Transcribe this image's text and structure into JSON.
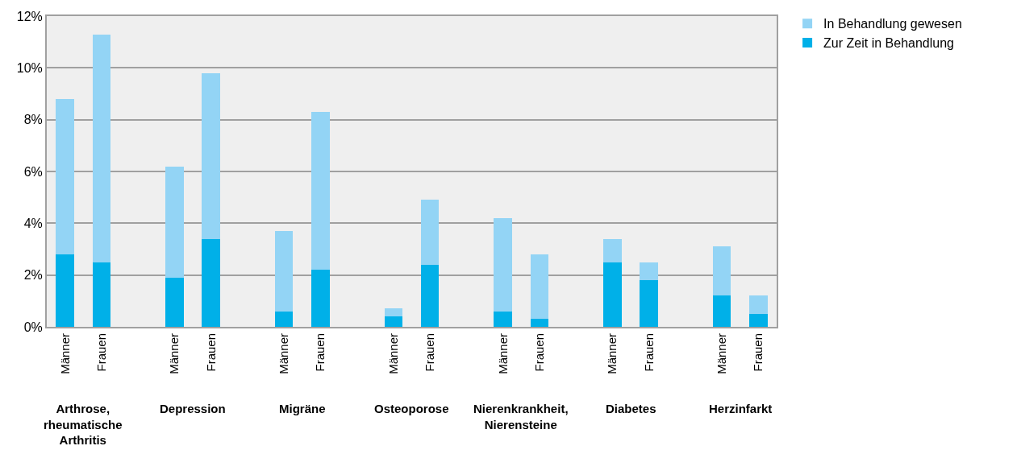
{
  "chart_data": {
    "type": "bar",
    "stacked": true,
    "categories": [
      "Männer",
      "Frauen",
      null,
      "Männer",
      "Frauen",
      null,
      "Männer",
      "Frauen",
      null,
      "Männer",
      "Frauen",
      null,
      "Männer",
      "Frauen",
      null,
      "Männer",
      "Frauen",
      null,
      "Männer",
      "Frauen"
    ],
    "series": [
      {
        "name": "Zur Zeit in Behandlung",
        "color": "#00b0e8",
        "values": [
          2.8,
          2.5,
          null,
          1.9,
          3.4,
          null,
          0.6,
          2.2,
          null,
          0.4,
          2.4,
          null,
          0.6,
          0.3,
          null,
          2.5,
          1.8,
          null,
          1.2,
          0.5
        ]
      },
      {
        "name": "In Behandlung gewesen",
        "color": "#93d4f5",
        "values": [
          6.0,
          8.8,
          null,
          4.3,
          6.4,
          null,
          3.1,
          6.1,
          null,
          0.3,
          2.5,
          null,
          3.6,
          2.5,
          null,
          0.9,
          0.7,
          null,
          1.9,
          0.7
        ]
      }
    ],
    "ylim": [
      0,
      12
    ],
    "yticks": [
      {
        "value": 0,
        "label": "0%"
      },
      {
        "value": 2,
        "label": "2%"
      },
      {
        "value": 4,
        "label": "4%"
      },
      {
        "value": 6,
        "label": "6%"
      },
      {
        "value": 8,
        "label": "8%"
      },
      {
        "value": 10,
        "label": "10%"
      },
      {
        "value": 12,
        "label": "12%"
      }
    ],
    "grid": "y",
    "legend": "top right",
    "annotations": [
      "Arthrose,\nrheumatische\nArthritis",
      "Depression",
      "Migräne",
      "Osteoporose",
      "Nierenkrankheit,\nNierensteine",
      "Diabetes",
      "Herzinfarkt"
    ]
  }
}
